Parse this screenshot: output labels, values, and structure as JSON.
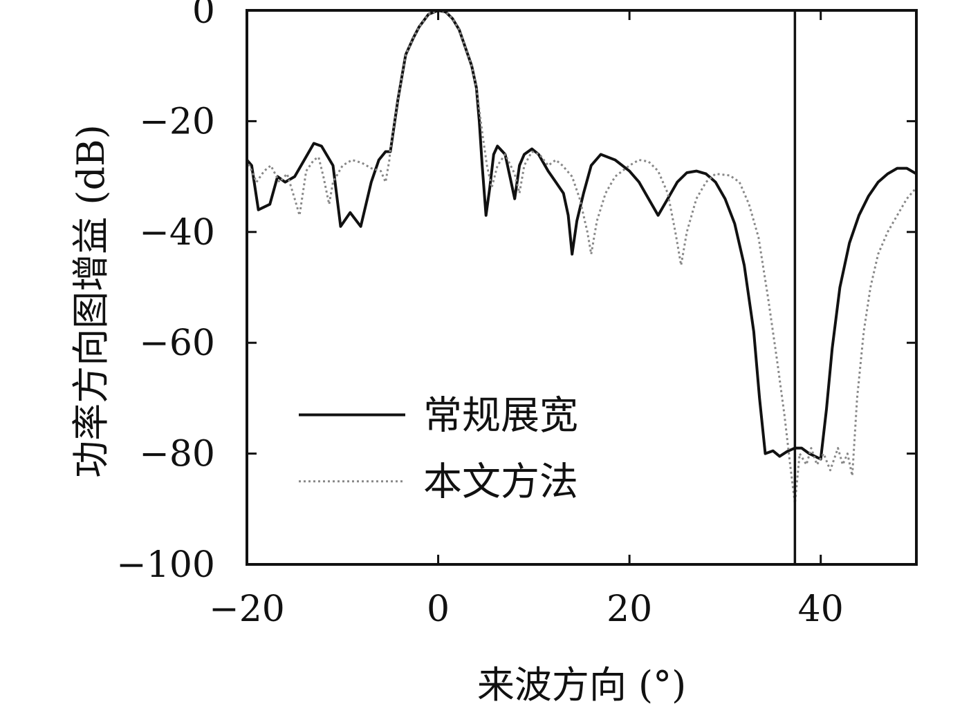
{
  "chart_data": {
    "type": "line",
    "title": "",
    "xlabel": "来波方向 (°)",
    "ylabel": "功率方向图增益 (dB)",
    "xlim": [
      -20,
      50
    ],
    "ylim": [
      -100,
      0
    ],
    "x_ticks": [
      -20,
      0,
      20,
      40
    ],
    "x_tick_labels": [
      "−20",
      "0",
      "20",
      "40"
    ],
    "y_ticks": [
      0,
      -20,
      -40,
      -60,
      -80,
      -100
    ],
    "y_tick_labels": [
      "0",
      "−20",
      "−40",
      "−60",
      "−80",
      "−100"
    ],
    "grid": false,
    "legend_position": "lower-left",
    "interference_marker_x": 37.3,
    "series": [
      {
        "name": "常规展宽",
        "style": "solid",
        "color": "#111111",
        "points": [
          [
            -20,
            -27
          ],
          [
            -19.5,
            -28
          ],
          [
            -18.8,
            -36
          ],
          [
            -17.6,
            -35
          ],
          [
            -16.8,
            -30
          ],
          [
            -16,
            -31
          ],
          [
            -15,
            -30
          ],
          [
            -14,
            -27
          ],
          [
            -13,
            -24
          ],
          [
            -12.2,
            -24.5
          ],
          [
            -11,
            -28
          ],
          [
            -10.2,
            -39
          ],
          [
            -9.2,
            -36.5
          ],
          [
            -8.1,
            -39
          ],
          [
            -7,
            -31
          ],
          [
            -6.2,
            -27
          ],
          [
            -5.5,
            -25.5
          ],
          [
            -5,
            -25.5
          ],
          [
            -4.2,
            -16
          ],
          [
            -3.4,
            -8
          ],
          [
            -2.6,
            -5
          ],
          [
            -2,
            -3
          ],
          [
            -1,
            -0.7
          ],
          [
            0,
            0
          ],
          [
            0.8,
            -0.3
          ],
          [
            1.5,
            -1.5
          ],
          [
            2.2,
            -3.5
          ],
          [
            2.9,
            -7
          ],
          [
            3.5,
            -10
          ],
          [
            4,
            -14
          ],
          [
            4.3,
            -20
          ],
          [
            4.6,
            -28
          ],
          [
            5,
            -37
          ],
          [
            5.4,
            -32
          ],
          [
            5.8,
            -26
          ],
          [
            6.2,
            -24.5
          ],
          [
            7,
            -26
          ],
          [
            7.5,
            -30
          ],
          [
            8,
            -34
          ],
          [
            8.5,
            -28
          ],
          [
            9,
            -26
          ],
          [
            9.8,
            -25
          ],
          [
            10.5,
            -26
          ],
          [
            11.5,
            -29
          ],
          [
            12.3,
            -31
          ],
          [
            13.1,
            -33
          ],
          [
            13.6,
            -37
          ],
          [
            14,
            -44
          ],
          [
            14.5,
            -38
          ],
          [
            15.2,
            -33
          ],
          [
            16,
            -28
          ],
          [
            17,
            -26
          ],
          [
            18.5,
            -27
          ],
          [
            20,
            -29
          ],
          [
            21,
            -31
          ],
          [
            22,
            -34
          ],
          [
            23,
            -37
          ],
          [
            24,
            -34
          ],
          [
            25,
            -31
          ],
          [
            26,
            -29.3
          ],
          [
            27,
            -29
          ],
          [
            28,
            -29.5
          ],
          [
            29,
            -31
          ],
          [
            30,
            -34
          ],
          [
            31,
            -38.5
          ],
          [
            32,
            -46
          ],
          [
            33,
            -58
          ],
          [
            33.6,
            -70
          ],
          [
            34.2,
            -80
          ],
          [
            35,
            -79.5
          ],
          [
            35.7,
            -80.5
          ],
          [
            36.5,
            -79.6
          ],
          [
            37.3,
            -79
          ],
          [
            38,
            -79
          ],
          [
            38.8,
            -80
          ],
          [
            40,
            -81
          ],
          [
            40.6,
            -72
          ],
          [
            41.2,
            -61
          ],
          [
            42,
            -50
          ],
          [
            43,
            -42
          ],
          [
            44,
            -37
          ],
          [
            45,
            -33.5
          ],
          [
            46,
            -31
          ],
          [
            47,
            -29.5
          ],
          [
            48,
            -28.5
          ],
          [
            49,
            -28.5
          ],
          [
            50,
            -29.5
          ]
        ]
      },
      {
        "name": "本文方法",
        "style": "dotted",
        "color": "#888888",
        "points": [
          [
            -20,
            -27
          ],
          [
            -19,
            -31
          ],
          [
            -18.2,
            -29
          ],
          [
            -17.5,
            -28
          ],
          [
            -16.6,
            -31
          ],
          [
            -15.8,
            -29.5
          ],
          [
            -15,
            -34
          ],
          [
            -14.5,
            -37
          ],
          [
            -13.8,
            -29
          ],
          [
            -13,
            -27
          ],
          [
            -12.5,
            -26.5
          ],
          [
            -12,
            -30
          ],
          [
            -11.4,
            -35
          ],
          [
            -11,
            -31
          ],
          [
            -10,
            -28
          ],
          [
            -9,
            -27
          ],
          [
            -8,
            -27.5
          ],
          [
            -7,
            -28.5
          ],
          [
            -6,
            -29
          ],
          [
            -5.5,
            -31
          ],
          [
            -5.1,
            -27
          ],
          [
            -5,
            -25
          ],
          [
            -4.2,
            -16
          ],
          [
            -3.4,
            -8
          ],
          [
            -2.6,
            -5
          ],
          [
            -2,
            -3
          ],
          [
            -1,
            -0.7
          ],
          [
            0,
            0
          ],
          [
            0.8,
            -0.3
          ],
          [
            1.5,
            -1.5
          ],
          [
            2.2,
            -3.5
          ],
          [
            2.9,
            -7
          ],
          [
            3.5,
            -10
          ],
          [
            4,
            -14
          ],
          [
            4.6,
            -22
          ],
          [
            5.1,
            -28
          ],
          [
            5.6,
            -32
          ],
          [
            6.2,
            -28
          ],
          [
            7,
            -26
          ],
          [
            8,
            -29.5
          ],
          [
            8.5,
            -33
          ],
          [
            9,
            -28
          ],
          [
            9.8,
            -25.5
          ],
          [
            10.6,
            -26
          ],
          [
            11.5,
            -28
          ],
          [
            12.3,
            -27
          ],
          [
            13,
            -28
          ],
          [
            14,
            -30
          ],
          [
            14.8,
            -34
          ],
          [
            15.6,
            -40
          ],
          [
            16,
            -44
          ],
          [
            16.6,
            -38
          ],
          [
            17.5,
            -33
          ],
          [
            18.5,
            -30
          ],
          [
            20,
            -28
          ],
          [
            21,
            -27
          ],
          [
            22,
            -27.3
          ],
          [
            23,
            -29
          ],
          [
            24,
            -33
          ],
          [
            24.8,
            -40
          ],
          [
            25.4,
            -46
          ],
          [
            26,
            -40
          ],
          [
            27,
            -34
          ],
          [
            28,
            -31
          ],
          [
            29,
            -29.5
          ],
          [
            30.5,
            -29.8
          ],
          [
            31.5,
            -31
          ],
          [
            32.5,
            -35
          ],
          [
            33.5,
            -41
          ],
          [
            34.5,
            -52
          ],
          [
            35.5,
            -64
          ],
          [
            36.2,
            -73
          ],
          [
            36.8,
            -82
          ],
          [
            37.3,
            -89
          ],
          [
            37.8,
            -80
          ],
          [
            38.5,
            -82
          ],
          [
            39,
            -79
          ],
          [
            39.6,
            -82
          ],
          [
            40.3,
            -80
          ],
          [
            41,
            -83
          ],
          [
            41.8,
            -79
          ],
          [
            42.3,
            -82
          ],
          [
            42.8,
            -80
          ],
          [
            43.3,
            -84
          ],
          [
            43.8,
            -70
          ],
          [
            44.5,
            -58
          ],
          [
            45.2,
            -50
          ],
          [
            46,
            -44
          ],
          [
            47,
            -40
          ],
          [
            48,
            -37
          ],
          [
            49,
            -34
          ],
          [
            50,
            -32
          ]
        ]
      }
    ]
  }
}
